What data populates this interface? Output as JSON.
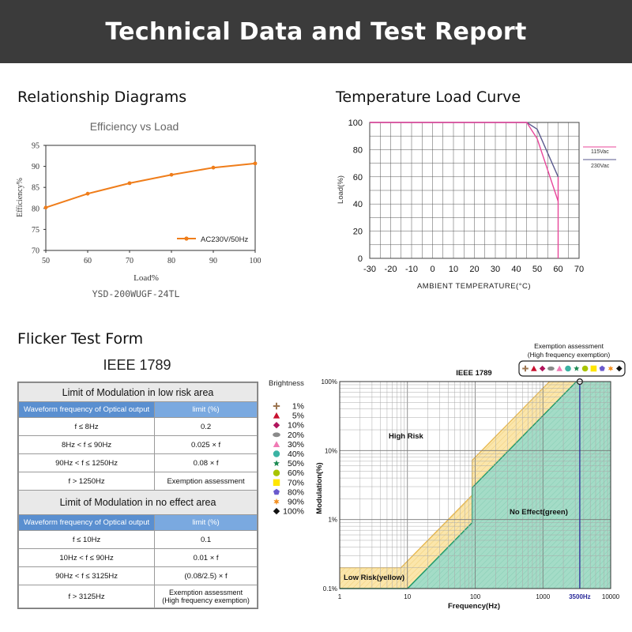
{
  "banner_title": "Technical Data and Test Report",
  "sections": {
    "relationship": "Relationship Diagrams",
    "temperature": "Temperature Load Curve",
    "flicker": "Flicker Test Form"
  },
  "standard_name": "IEEE 1789",
  "model_name": "YSD-200WUGF-24TL",
  "chart_data": [
    {
      "type": "line",
      "title": "Efficiency vs Load",
      "xlabel": "Load%",
      "ylabel": "Efficiency%",
      "xlim": [
        50,
        100
      ],
      "ylim": [
        70,
        95
      ],
      "x_ticks": [
        "50",
        "60",
        "70",
        "80",
        "90",
        "100"
      ],
      "y_ticks": [
        "70",
        "75",
        "80",
        "85",
        "90",
        "95"
      ],
      "legend_position": "bottom-right",
      "series": [
        {
          "name": "AC230V/50Hz",
          "color": "#ef7d1a",
          "x": [
            50,
            60,
            70,
            80,
            90,
            100
          ],
          "y": [
            80.2,
            83.5,
            86.0,
            88.0,
            89.7,
            90.7
          ]
        }
      ]
    },
    {
      "type": "line",
      "title": "",
      "xlabel": "AMBIENT TEMPERATURE(°C)",
      "ylabel": "Load(%)",
      "xlim": [
        -30,
        70
      ],
      "ylim": [
        0,
        100
      ],
      "x_ticks": [
        "-30",
        "-20",
        "-10",
        "0",
        "10",
        "20",
        "30",
        "40",
        "50",
        "60",
        "70"
      ],
      "y_ticks": [
        "0",
        "20",
        "40",
        "60",
        "80",
        "100"
      ],
      "grid": true,
      "legend_position": "right",
      "series": [
        {
          "name": "115Vac",
          "color": "#e8459a",
          "x": [
            -30,
            45,
            50,
            60
          ],
          "y": [
            100,
            100,
            88,
            42
          ]
        },
        {
          "name": "230Vac",
          "color": "#5a5a8e",
          "x": [
            -30,
            45,
            50,
            60
          ],
          "y": [
            100,
            100,
            95,
            60
          ]
        }
      ],
      "cutoff_x": 60
    },
    {
      "type": "area",
      "title": "IEEE 1789",
      "xlabel": "Frequency(Hz)",
      "ylabel": "Modulation(%)",
      "x_scale": "log",
      "y_scale": "log",
      "xlim": [
        1,
        10000
      ],
      "ylim": [
        0.1,
        100
      ],
      "x_ticks": [
        "1",
        "10",
        "100",
        "1000",
        "10000"
      ],
      "y_ticks": [
        "0.1%",
        "1%",
        "10%",
        "100%"
      ],
      "marker_frequency_label": "3500Hz",
      "marker_frequency": 3500,
      "regions": [
        {
          "name": "High Risk",
          "color": "#ffffff"
        },
        {
          "name": "Low Risk(yellow)",
          "color": "#fbe9b0"
        },
        {
          "name": "No Effect(green)",
          "color": "#a7dfcc"
        }
      ],
      "low_risk_boundary": {
        "x": [
          1,
          8,
          90,
          90,
          1250
        ],
        "y": [
          0.2,
          0.2,
          2.25,
          7.2,
          100
        ]
      },
      "no_effect_boundary": {
        "x": [
          1,
          10,
          90,
          90,
          3125
        ],
        "y": [
          0.1,
          0.1,
          0.9,
          2.88,
          100
        ]
      },
      "exemption_title_line1": "Exemption assessment",
      "exemption_title_line2": "(High frequency exemption)",
      "brightness_label": "Brightness",
      "brightness_levels": [
        {
          "label": "1%",
          "color": "#9c7550",
          "shape": "cross"
        },
        {
          "label": "5%",
          "color": "#c8102e",
          "shape": "triangle"
        },
        {
          "label": "10%",
          "color": "#b0145c",
          "shape": "diamond"
        },
        {
          "label": "20%",
          "color": "#8a8a8a",
          "shape": "ellipse"
        },
        {
          "label": "30%",
          "color": "#f07ab4",
          "shape": "triangle"
        },
        {
          "label": "40%",
          "color": "#3bb3a4",
          "shape": "circle"
        },
        {
          "label": "50%",
          "color": "#1c8a52",
          "shape": "star"
        },
        {
          "label": "60%",
          "color": "#a8c400",
          "shape": "circle"
        },
        {
          "label": "70%",
          "color": "#ffe600",
          "shape": "square"
        },
        {
          "label": "80%",
          "color": "#6a5acd",
          "shape": "pentagon"
        },
        {
          "label": "90%",
          "color": "#f39021",
          "shape": "star6"
        },
        {
          "label": "100%",
          "color": "#111111",
          "shape": "diamond"
        }
      ]
    }
  ],
  "low_risk_table": {
    "title": "Limit of Modulation in low risk area",
    "col_freq": "Waveform frequency of Optical output",
    "col_limit": "limit (%)",
    "rows": [
      {
        "freq": "f ≤ 8Hz",
        "limit": "0.2"
      },
      {
        "freq": "8Hz < f ≤ 90Hz",
        "limit": "0.025 × f"
      },
      {
        "freq": "90Hz < f ≤ 1250Hz",
        "limit": "0.08 × f"
      },
      {
        "freq": "f > 1250Hz",
        "limit": "Exemption assessment"
      }
    ]
  },
  "no_effect_table": {
    "title": "Limit of Modulation in no effect area",
    "col_freq": "Waveform frequency of Optical output",
    "col_limit": "limit (%)",
    "rows": [
      {
        "freq": "f ≤ 10Hz",
        "limit": "0.1"
      },
      {
        "freq": "10Hz < f ≤ 90Hz",
        "limit": "0.01 × f"
      },
      {
        "freq": "90Hz < f ≤ 3125Hz",
        "limit": "(0.08/2.5) × f"
      },
      {
        "freq": "f > 3125Hz",
        "limit": "Exemption assessment",
        "limit_line2": "(High frequency exemption)"
      }
    ]
  }
}
